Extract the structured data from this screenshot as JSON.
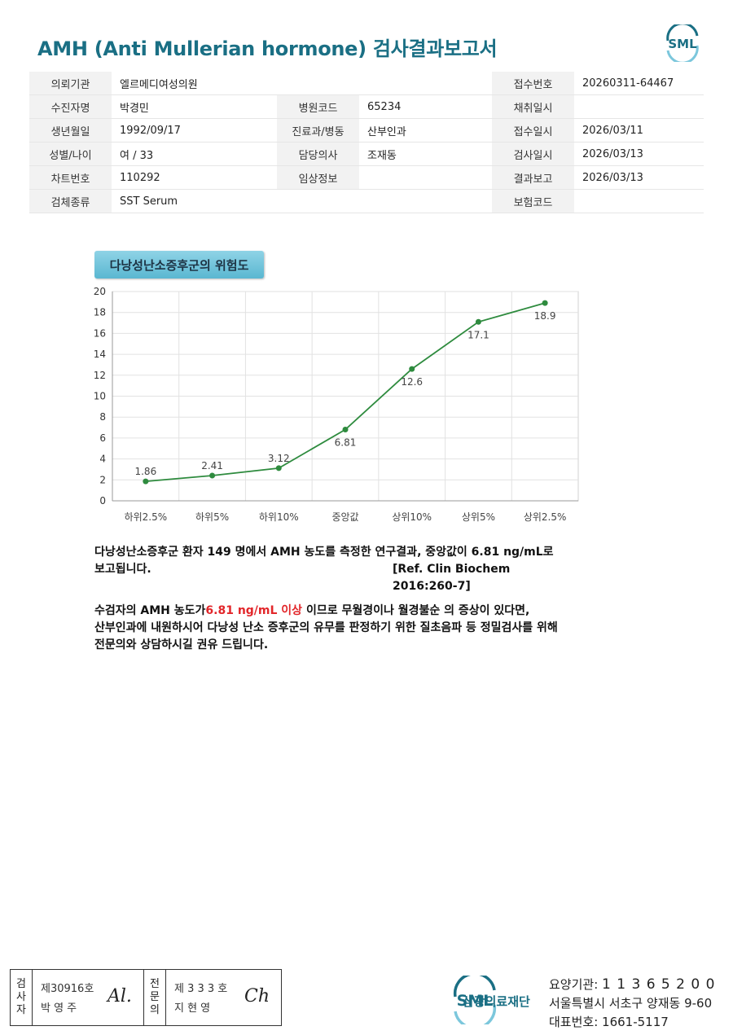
{
  "header": {
    "title": "AMH (Anti Mullerian hormone) 검사결과보고서",
    "logo_text": "SML"
  },
  "info": {
    "rows": [
      [
        {
          "label": "의뢰기관",
          "value": "엘르메디여성의원"
        },
        null,
        {
          "label": "접수번호",
          "value": "20260311-64467"
        }
      ],
      [
        {
          "label": "수진자명",
          "value": "박경민"
        },
        {
          "label": "병원코드",
          "value": "65234"
        },
        {
          "label": "채취일시",
          "value": ""
        }
      ],
      [
        {
          "label": "생년월일",
          "value": "1992/09/17"
        },
        {
          "label": "진료과/병동",
          "value": "산부인과"
        },
        {
          "label": "접수일시",
          "value": "2026/03/11"
        }
      ],
      [
        {
          "label": "성별/나이",
          "value": "여 / 33"
        },
        {
          "label": "담당의사",
          "value": "조재동"
        },
        {
          "label": "검사일시",
          "value": "2026/03/13"
        }
      ],
      [
        {
          "label": "차트번호",
          "value": "110292"
        },
        {
          "label": "임상정보",
          "value": ""
        },
        {
          "label": "결과보고",
          "value": "2026/03/13"
        }
      ],
      [
        {
          "label": "검체종류",
          "value": "SST Serum"
        },
        null,
        {
          "label": "보험코드",
          "value": ""
        }
      ]
    ]
  },
  "chart_data": {
    "type": "line",
    "title": "다낭성난소증후군의 위험도",
    "categories": [
      "하위2.5%",
      "하위5%",
      "하위10%",
      "중앙값",
      "상위10%",
      "상위5%",
      "상위2.5%"
    ],
    "values": [
      1.86,
      2.41,
      3.12,
      6.81,
      12.6,
      17.1,
      18.9
    ],
    "value_labels": [
      "1.86",
      "2.41",
      "3.12",
      "6.81",
      "12.6",
      "17.1",
      "18.9"
    ],
    "ylim": [
      0,
      20
    ],
    "yticks": [
      0,
      2,
      4,
      6,
      8,
      10,
      12,
      14,
      16,
      18,
      20
    ],
    "grid": true,
    "line_color": "#2e8b3e"
  },
  "text": {
    "p1_line1": "다낭성난소증후군 환자 149 명에서 AMH 농도를 측정한 연구결과, 중앙값이 6.81 ng/mL로",
    "p1_line2": "보고됩니다.",
    "p1_ref": "[Ref. Clin Biochem 2016:260-7]",
    "p2_line1_a": "수검자의 AMH 농도가",
    "p2_line1_red": "6.81 ng/mL 이상",
    "p2_line1_b": " 이므로 무월경이나 월경불순 의 증상이 있다면,",
    "p2_line2": "산부인과에 내원하시어 다낭성 난소 증후군의 유무를 판정하기 위한 질초음파 등 정밀검사를 위해",
    "p2_line3": "전문의와 상담하시길 권유 드립니다."
  },
  "signature": {
    "examiner_title": [
      "검",
      "사",
      "자"
    ],
    "examiner_no": "제30916호",
    "examiner_name": "박 영 주",
    "examiner_sig": "Al.",
    "doctor_title": [
      "전",
      "문",
      "의"
    ],
    "doctor_no": "제 3 3 3 호",
    "doctor_name": "지 현 영",
    "doctor_sig": "Ch"
  },
  "footer": {
    "logo_text": "SML",
    "org_name": "삼광의료재단",
    "code_label": "요양기관:",
    "code_value": "1 1 3 6 5 2 0 0",
    "address": "서울특별시 서초구 양재동 9-60",
    "phone_label": "대표번호:",
    "phone_value": "1661-5117"
  }
}
